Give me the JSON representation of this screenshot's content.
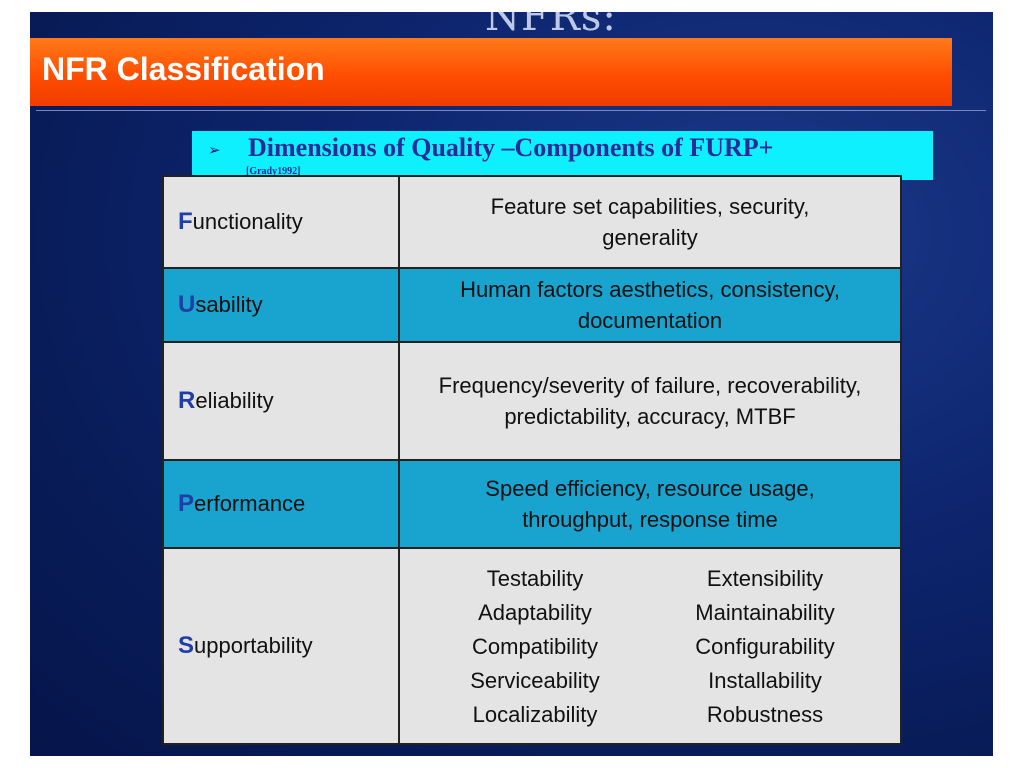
{
  "slide": {
    "ghost_title": "NFRs:",
    "title": "NFR Classification",
    "subtitle": "Dimensions of Quality –Components of FURP+",
    "citation": "[Grady1992]",
    "bullet": "➢"
  },
  "colors": {
    "title_bar": "#ff5a00",
    "subtitle_bg": "#0ff0ff",
    "row_light": "#e4e4e4",
    "row_blue": "#19a3cf",
    "letter_accent": "#1f3fa7",
    "background": "#0e2670"
  },
  "table": {
    "rows": [
      {
        "letter": "F",
        "rest": "unctionality",
        "description": "Feature set capabilities, security, generality"
      },
      {
        "letter": "U",
        "rest": "sability",
        "description": "Human factors aesthetics, consistency, documentation"
      },
      {
        "letter": "R",
        "rest": "eliability",
        "description": "Frequency/severity of failure, recoverability, predictability, accuracy, MTBF"
      },
      {
        "letter": "P",
        "rest": "erformance",
        "description": "Speed efficiency, resource usage, throughput, response time"
      },
      {
        "letter": "S",
        "rest": "upportability",
        "items": [
          "Testability",
          "Extensibility",
          "Adaptability",
          "Maintainability",
          "Compatibility",
          "Configurability",
          "Serviceability",
          "Installability",
          "Localizability",
          "Robustness"
        ]
      }
    ]
  }
}
